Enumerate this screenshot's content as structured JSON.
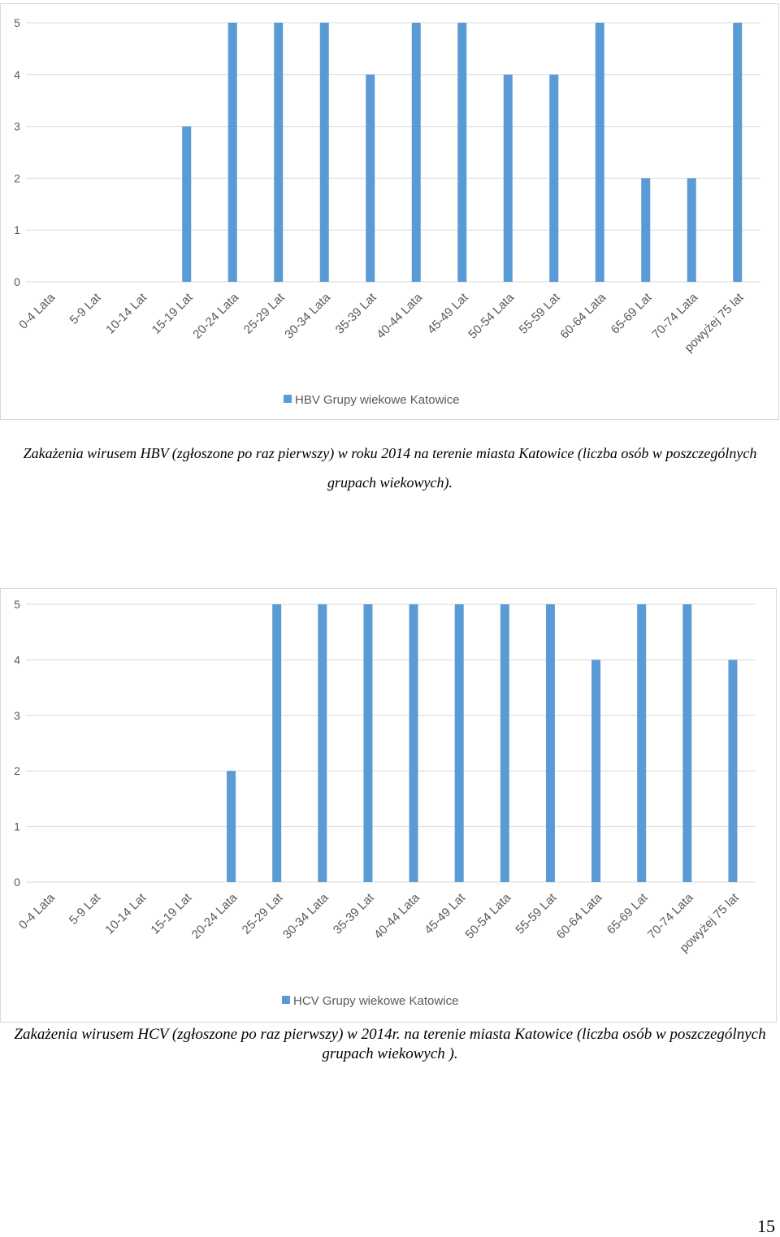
{
  "colors": {
    "bar": "#5b9bd5",
    "grid": "#d9d9d9",
    "text": "#595959"
  },
  "chart_data": [
    {
      "type": "bar",
      "categories": [
        "0-4 Lata",
        "5-9 Lat",
        "10-14 Lat",
        "15-19 Lat",
        "20-24 Lata",
        "25-29 Lat",
        "30-34 Lata",
        "35-39 Lat",
        "40-44 Lata",
        "45-49 Lat",
        "50-54 Lata",
        "55-59 Lat",
        "60-64 Lata",
        "65-69 Lat",
        "70-74 Lata",
        "powyżej 75 lat"
      ],
      "series": [
        {
          "name": "HBV Grupy wiekowe Katowice",
          "values": [
            0,
            0,
            0,
            3,
            5,
            5,
            5,
            4,
            5,
            5,
            4,
            4,
            5,
            2,
            2,
            5
          ]
        }
      ],
      "ylim": [
        0,
        5
      ],
      "yticks": [
        0,
        1,
        2,
        3,
        4,
        5
      ],
      "grid": true,
      "legend": "bottom"
    },
    {
      "type": "bar",
      "categories": [
        "0-4 Lata",
        "5-9 Lat",
        "10-14 Lat",
        "15-19 Lat",
        "20-24 Lata",
        "25-29 Lat",
        "30-34 Lata",
        "35-39 Lat",
        "40-44 Lata",
        "45-49 Lat",
        "50-54 Lata",
        "55-59 Lat",
        "60-64 Lata",
        "65-69 Lat",
        "70-74 Lata",
        "powyżej 75 lat"
      ],
      "series": [
        {
          "name": "HCV Grupy wiekowe Katowice",
          "values": [
            0,
            0,
            0,
            0,
            2,
            5,
            5,
            5,
            5,
            5,
            5,
            5,
            4,
            5,
            5,
            4
          ]
        }
      ],
      "ylim": [
        0,
        5
      ],
      "yticks": [
        0,
        1,
        2,
        3,
        4,
        5
      ],
      "grid": true,
      "legend": "bottom"
    }
  ],
  "captions": {
    "hbv": "Zakażenia wirusem HBV (zgłoszone po raz pierwszy) w roku 2014  na terenie miasta  Katowice (liczba osób w poszczególnych grupach wiekowych).",
    "hcv": "Zakażenia wirusem HCV (zgłoszone po raz pierwszy) w 2014r.  na terenie miasta  Katowice (liczba osób w poszczególnych grupach wiekowych )."
  },
  "page_number": "15"
}
